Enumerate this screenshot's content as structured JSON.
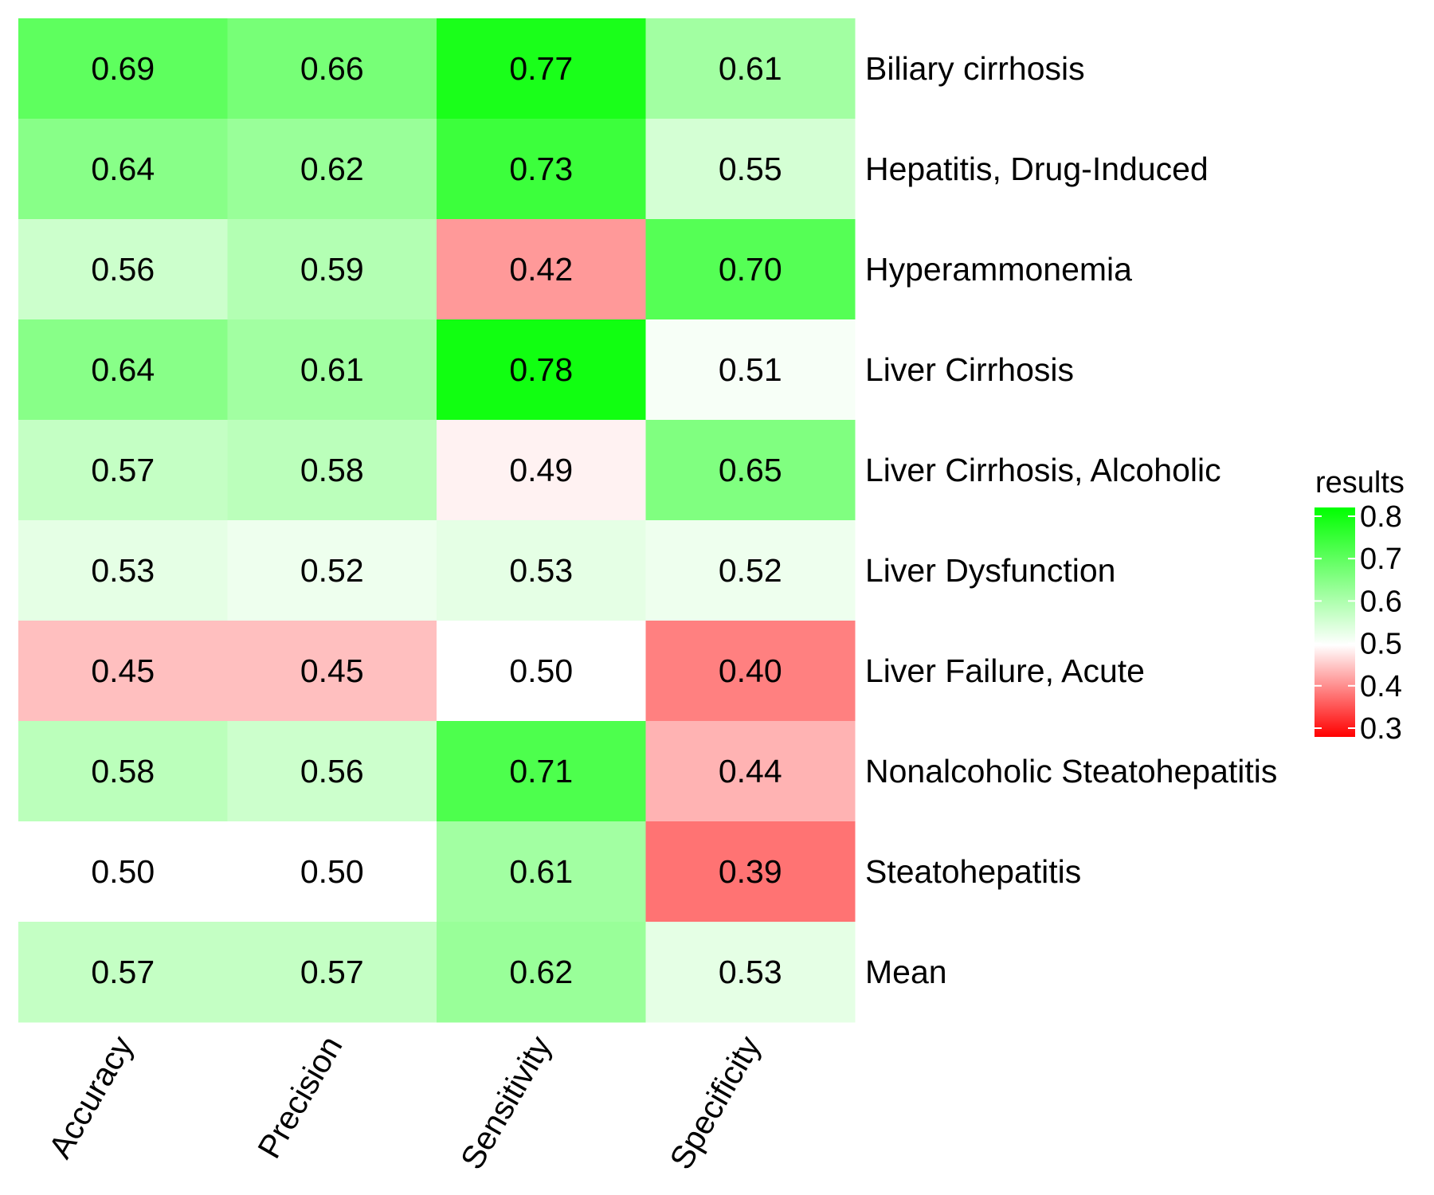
{
  "chart_data": {
    "type": "heatmap",
    "columns": [
      "Accuracy",
      "Precision",
      "Sensitivity",
      "Specificity"
    ],
    "rows": [
      "Biliary cirrhosis",
      "Hepatitis, Drug-Induced",
      "Hyperammonemia",
      "Liver Cirrhosis",
      "Liver Cirrhosis, Alcoholic",
      "Liver Dysfunction",
      "Liver Failure, Acute",
      "Nonalcoholic Steatohepatitis",
      "Steatohepatitis",
      "Mean"
    ],
    "values": [
      [
        0.69,
        0.66,
        0.77,
        0.61
      ],
      [
        0.64,
        0.62,
        0.73,
        0.55
      ],
      [
        0.56,
        0.59,
        0.42,
        0.7
      ],
      [
        0.64,
        0.61,
        0.78,
        0.51
      ],
      [
        0.57,
        0.58,
        0.49,
        0.65
      ],
      [
        0.53,
        0.52,
        0.53,
        0.52
      ],
      [
        0.45,
        0.45,
        0.5,
        0.4
      ],
      [
        0.58,
        0.56,
        0.71,
        0.44
      ],
      [
        0.5,
        0.5,
        0.61,
        0.39
      ],
      [
        0.57,
        0.57,
        0.62,
        0.53
      ]
    ],
    "value_labels": [
      [
        "0.69",
        "0.66",
        "0.77",
        "0.61"
      ],
      [
        "0.64",
        "0.62",
        "0.73",
        "0.55"
      ],
      [
        "0.56",
        "0.59",
        "0.42",
        "0.70"
      ],
      [
        "0.64",
        "0.61",
        "0.78",
        "0.51"
      ],
      [
        "0.57",
        "0.58",
        "0.49",
        "0.65"
      ],
      [
        "0.53",
        "0.52",
        "0.53",
        "0.52"
      ],
      [
        "0.45",
        "0.45",
        "0.50",
        "0.40"
      ],
      [
        "0.58",
        "0.56",
        "0.71",
        "0.44"
      ],
      [
        "0.50",
        "0.50",
        "0.61",
        "0.39"
      ],
      [
        "0.57",
        "0.57",
        "0.62",
        "0.53"
      ]
    ],
    "legend": {
      "title": "results",
      "ticks": [
        "0.3",
        "0.4",
        "0.5",
        "0.6",
        "0.7",
        "0.8"
      ],
      "range": [
        0.3,
        0.8
      ],
      "placement": "right"
    },
    "color_scale": {
      "low": "#ff0000",
      "mid": "#ffffff",
      "high": "#00ff00",
      "midpoint": 0.5
    }
  }
}
